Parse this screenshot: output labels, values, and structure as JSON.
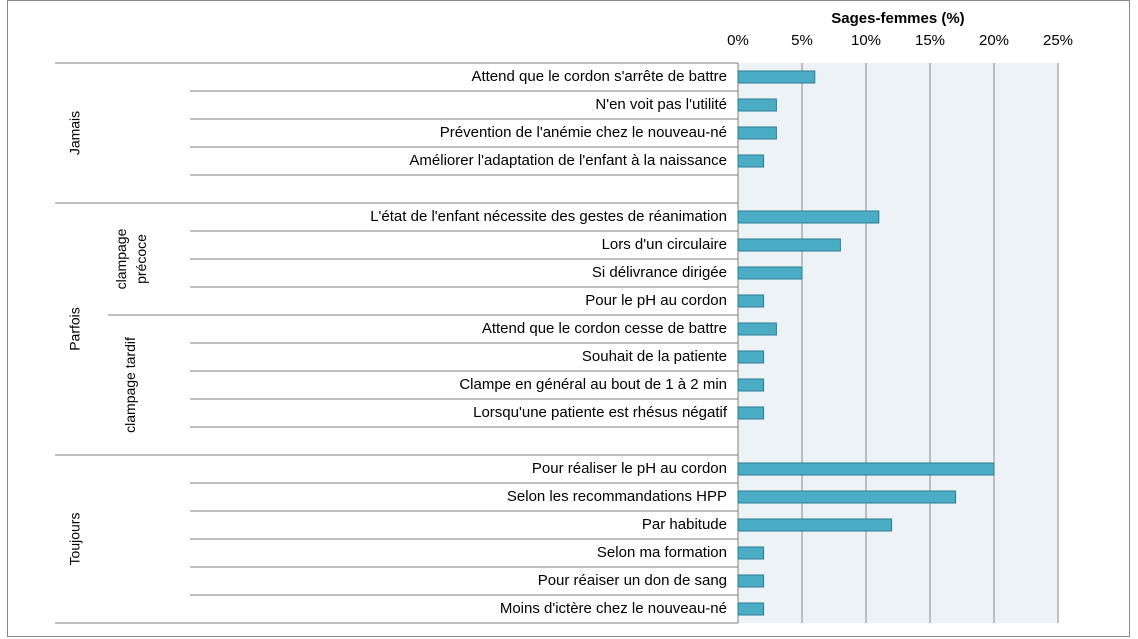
{
  "chart_data": {
    "type": "bar",
    "orientation": "horizontal",
    "xlabel": "Sages-femmes (%)",
    "xlim": [
      0,
      25
    ],
    "xticks": [
      {
        "value": 0,
        "label": "0%"
      },
      {
        "value": 5,
        "label": "5%"
      },
      {
        "value": 10,
        "label": "10%"
      },
      {
        "value": 15,
        "label": "15%"
      },
      {
        "value": 20,
        "label": "20%"
      },
      {
        "value": 25,
        "label": "25%"
      }
    ],
    "grid": true,
    "color": "#4bacc6",
    "groups": [
      {
        "label": "Jamais",
        "categories": [
          "Attend que le cordon s'arrête de battre",
          "N'en voit pas l'utilité",
          "Prévention de l'anémie chez le nouveau-né",
          "Améliorer l'adaptation de l'enfant à la naissance"
        ],
        "values": [
          6,
          3,
          3,
          2
        ]
      },
      {
        "label": "Parfois",
        "subgroups": [
          {
            "label": [
              "clampage",
              "précoce"
            ],
            "categories": [
              "L'état de l'enfant nécessite des gestes de réanimation",
              "Lors d'un circulaire",
              "Si délivrance dirigée",
              "Pour le pH au cordon"
            ],
            "values": [
              11,
              8,
              5,
              2
            ]
          },
          {
            "label": [
              "clampage tardif"
            ],
            "categories": [
              "Attend que le cordon cesse de battre",
              "Souhait de la patiente",
              "Clampe en général au bout de 1 à 2 min",
              "Lorsqu'une patiente est rhésus négatif"
            ],
            "values": [
              3,
              2,
              2,
              2
            ]
          }
        ]
      },
      {
        "label": "Toujours",
        "categories": [
          "Pour réaliser le pH au cordon",
          "Selon les recommandations HPP",
          "Par habitude",
          "Selon ma formation",
          "Pour réaiser un don de sang",
          "Moins d'ictère chez le nouveau-né"
        ],
        "values": [
          20,
          17,
          12,
          2,
          2,
          2
        ]
      }
    ]
  }
}
